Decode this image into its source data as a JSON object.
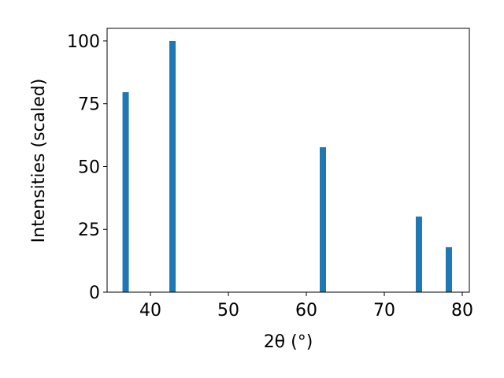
{
  "chart_data": {
    "type": "bar",
    "x": [
      36.82,
      42.83,
      62.12,
      74.44,
      78.28
    ],
    "values": [
      79.6,
      100,
      57.7,
      30.1,
      17.9
    ],
    "color": "#1f77b4",
    "xlabel": "2θ (°)",
    "ylabel": "Intensities (scaled)",
    "xlim": [
      34.44,
      80.91
    ],
    "ylim": [
      0,
      105
    ],
    "xticks": [
      40,
      50,
      60,
      70,
      80
    ],
    "yticks": [
      0,
      25,
      50,
      75,
      100
    ],
    "grid": false
  }
}
